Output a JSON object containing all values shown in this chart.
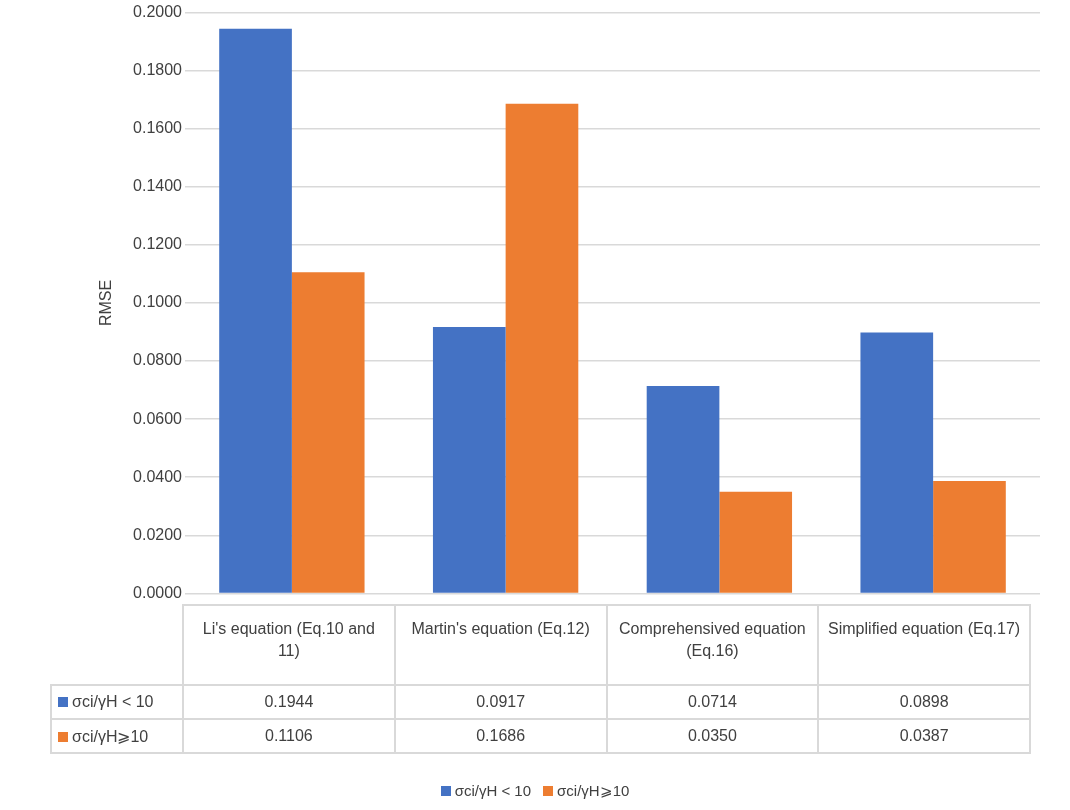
{
  "chart_data": {
    "type": "bar",
    "ylabel": "RMSE",
    "categories": [
      "Li's equation (Eq.10 and 11)",
      "Martin's equation (Eq.12)",
      "Comprehensived equation (Eq.16)",
      "Simplified equation (Eq.17)"
    ],
    "series": [
      {
        "name": "σci/γH < 10",
        "color": "#4472c4",
        "values": [
          0.1944,
          0.0917,
          0.0714,
          0.0898
        ],
        "value_labels": [
          "0.1944",
          "0.0917",
          "0.0714",
          "0.0898"
        ]
      },
      {
        "name": "σci/γH⩾10",
        "color": "#ed7d31",
        "values": [
          0.1106,
          0.1686,
          0.035,
          0.0387
        ],
        "value_labels": [
          "0.1106",
          "0.1686",
          "0.0350",
          "0.0387"
        ]
      }
    ],
    "ylim": [
      0,
      0.2
    ],
    "yticks": [
      {
        "value": 0,
        "label": "0.0000"
      },
      {
        "value": 0.02,
        "label": "0.0200"
      },
      {
        "value": 0.04,
        "label": "0.0400"
      },
      {
        "value": 0.06,
        "label": "0.0600"
      },
      {
        "value": 0.08,
        "label": "0.0800"
      },
      {
        "value": 0.1,
        "label": "0.1000"
      },
      {
        "value": 0.12,
        "label": "0.1200"
      },
      {
        "value": 0.14,
        "label": "0.1400"
      },
      {
        "value": 0.16,
        "label": "0.1600"
      },
      {
        "value": 0.18,
        "label": "0.1800"
      },
      {
        "value": 0.2,
        "label": "0.2000"
      }
    ],
    "grid": "y",
    "legend": "bottom"
  }
}
